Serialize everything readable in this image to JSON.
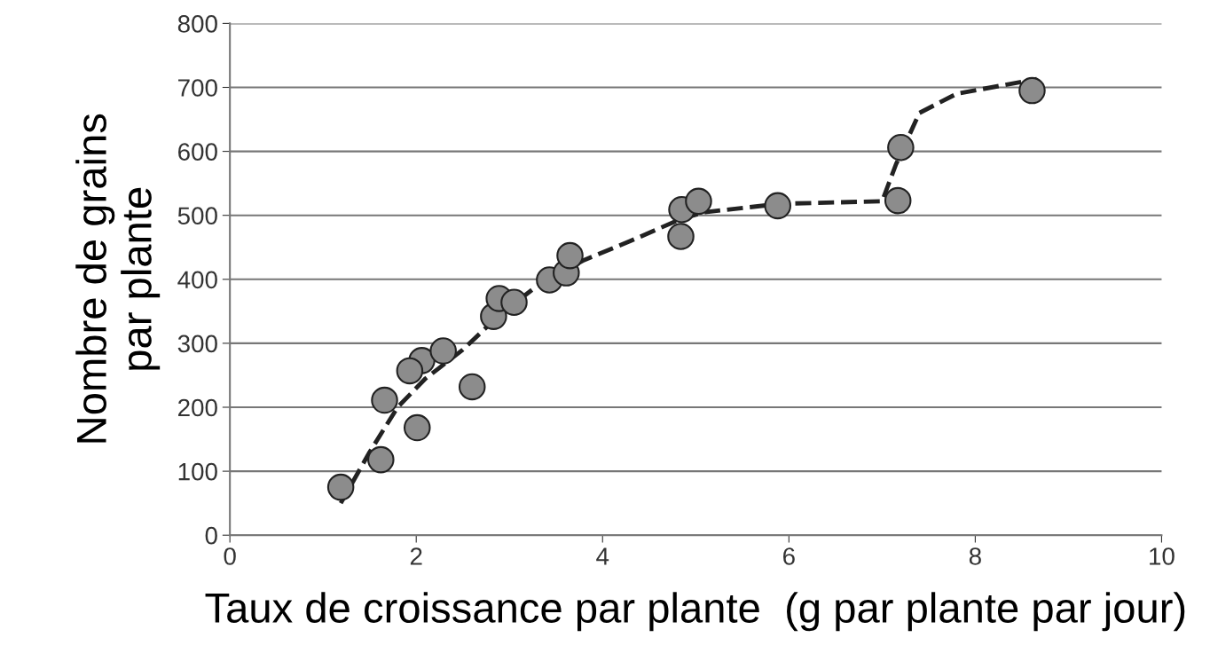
{
  "chart_data": {
    "type": "scatter",
    "xlabel": "Taux de croissance par plante  (g par plante par jour)",
    "ylabel": "Nombre de grains\npar plante",
    "xlim": [
      0,
      10
    ],
    "xticks": [
      0,
      2,
      4,
      6,
      8,
      10
    ],
    "ylim": [
      0,
      800
    ],
    "yticks": [
      0,
      100,
      200,
      300,
      400,
      500,
      600,
      700,
      800
    ],
    "grid": "y",
    "marker": "circle",
    "series": [
      {
        "type": "line",
        "color": "#222222",
        "line_style": "dashed",
        "marker": "none",
        "x": [
          1.19,
          1.5,
          1.8,
          2.1,
          2.5,
          2.9,
          3.3,
          3.8,
          4.3,
          4.85,
          5.1,
          5.9,
          7.0,
          7.15,
          7.4,
          7.8,
          8.66
        ],
        "values": [
          50,
          130,
          200,
          245,
          290,
          345,
          390,
          430,
          460,
          495,
          505,
          518,
          522,
          580,
          660,
          690,
          713
        ]
      },
      {
        "color": "#8c8c8c",
        "x": [
          1.19,
          1.62,
          1.66,
          2.01,
          2.06,
          1.93,
          2.29,
          2.6,
          2.83,
          2.89,
          3.05,
          3.43,
          3.61,
          3.65,
          4.84,
          4.85,
          5.03,
          5.88,
          7.17,
          7.2,
          8.61
        ],
        "values": [
          75,
          118,
          211,
          168,
          273,
          257,
          288,
          232,
          342,
          370,
          364,
          399,
          410,
          437,
          467,
          509,
          522,
          515,
          523,
          606,
          695
        ]
      }
    ]
  }
}
